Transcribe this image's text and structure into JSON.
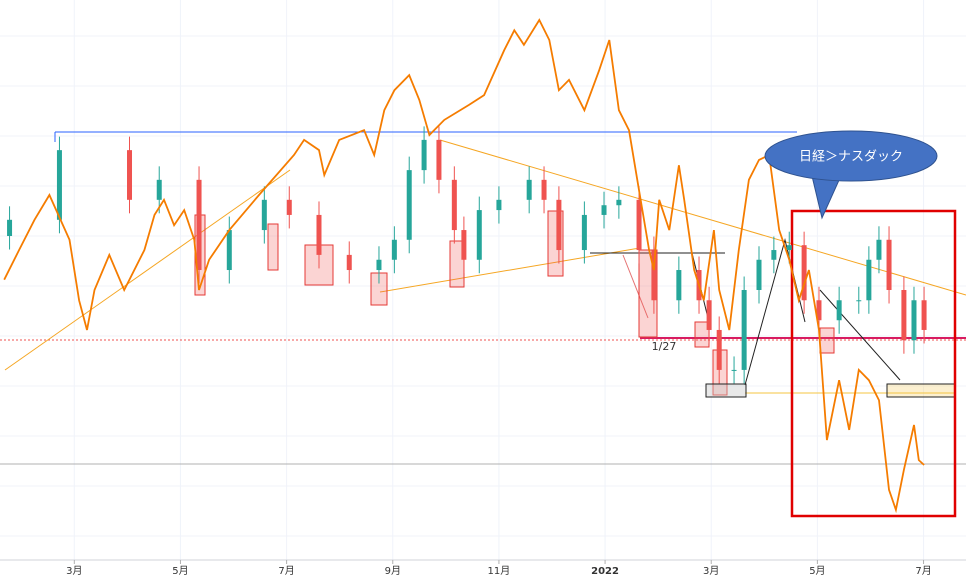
{
  "chart_data": {
    "type": "candlestick",
    "x": [
      1.78,
      2.72,
      4.04,
      4.6,
      5.35,
      5.92,
      6.58,
      7.05,
      7.61,
      8.18,
      8.74,
      9.03,
      9.31,
      9.59,
      9.87,
      10.16,
      10.34,
      10.63,
      11.0,
      11.57,
      11.85,
      12.13,
      12.61,
      12.98,
      13.26,
      13.64,
      13.92,
      14.39,
      14.77,
      14.96,
      15.15,
      15.43,
      15.62,
      15.9,
      16.18,
      16.47,
      16.75,
      17.03,
      17.41,
      17.78,
      17.97,
      18.16,
      18.35,
      18.63,
      18.82,
      19.01
    ],
    "open": [
      60.0,
      63.0,
      75.9,
      66.7,
      70.4,
      53.7,
      61.1,
      66.7,
      63.9,
      56.5,
      53.7,
      55.6,
      59.3,
      72.2,
      77.8,
      70.4,
      61.1,
      55.6,
      64.8,
      66.7,
      70.4,
      66.7,
      57.4,
      63.9,
      65.7,
      66.7,
      57.4,
      48.1,
      53.7,
      48.1,
      42.6,
      35.2,
      35.2,
      50.0,
      55.6,
      57.4,
      58.3,
      48.1,
      44.4,
      48.1,
      48.1,
      55.6,
      59.3,
      50.0,
      40.7,
      48.1
    ],
    "high": [
      65.5,
      78.4,
      78.4,
      72.9,
      72.9,
      63.6,
      69.2,
      69.2,
      66.4,
      59.0,
      58.1,
      61.8,
      74.7,
      80.3,
      80.3,
      72.9,
      63.6,
      67.3,
      69.2,
      72.9,
      72.9,
      69.2,
      66.4,
      68.2,
      69.2,
      69.2,
      59.9,
      56.2,
      56.2,
      50.6,
      45.1,
      37.7,
      52.5,
      58.1,
      59.9,
      60.8,
      60.8,
      50.6,
      50.6,
      50.6,
      58.1,
      61.8,
      61.8,
      52.5,
      50.6,
      50.6
    ],
    "low": [
      57.5,
      60.5,
      64.2,
      64.2,
      51.2,
      51.2,
      58.6,
      61.4,
      54.0,
      51.2,
      51.2,
      53.1,
      56.8,
      69.7,
      67.9,
      58.6,
      53.1,
      53.1,
      62.3,
      64.2,
      64.2,
      54.9,
      54.9,
      61.4,
      63.2,
      54.9,
      45.6,
      45.6,
      45.6,
      40.1,
      32.7,
      32.7,
      32.7,
      47.5,
      53.1,
      54.9,
      45.6,
      41.9,
      41.9,
      45.6,
      45.6,
      53.1,
      47.5,
      38.2,
      38.2,
      40.1
    ],
    "close": [
      63.0,
      75.9,
      66.7,
      70.4,
      53.7,
      61.1,
      66.7,
      63.9,
      56.5,
      53.7,
      55.6,
      59.3,
      72.2,
      77.8,
      70.4,
      61.1,
      55.6,
      64.8,
      66.7,
      70.4,
      66.7,
      57.4,
      63.9,
      65.7,
      66.7,
      57.4,
      48.1,
      53.7,
      48.1,
      42.6,
      35.2,
      35.2,
      50.0,
      55.6,
      57.4,
      58.3,
      48.1,
      44.4,
      48.1,
      48.1,
      55.6,
      59.3,
      50.0,
      40.7,
      48.1,
      42.6
    ],
    "up_color": "#26a69a",
    "down_color": "#ef5350",
    "series": [
      {
        "type": "line",
        "color": "#f57c00",
        "x": [
          1.68,
          1.96,
          2.25,
          2.53,
          2.91,
          3.09,
          3.24,
          3.38,
          3.66,
          3.94,
          4.32,
          4.51,
          4.69,
          4.88,
          5.07,
          5.26,
          5.35,
          5.54,
          5.92,
          6.48,
          7.14,
          7.33,
          7.61,
          7.71,
          7.99,
          8.46,
          8.65,
          8.84,
          9.03,
          9.31,
          9.5,
          9.69,
          9.97,
          10.44,
          10.72,
          11.1,
          11.29,
          11.47,
          11.76,
          11.95,
          12.13,
          12.32,
          12.61,
          12.89,
          13.08,
          13.26,
          13.45,
          13.64,
          13.83,
          13.92,
          14.02,
          14.21,
          14.39,
          14.49,
          14.68,
          14.86,
          15.05,
          15.15,
          15.34,
          15.52,
          15.71,
          15.9,
          16.09,
          16.28,
          16.47,
          16.65,
          16.84,
          17.03,
          17.18,
          17.41,
          17.6,
          17.78,
          17.97,
          18.16,
          18.35,
          18.48,
          18.63,
          18.82,
          18.91,
          19.01
        ],
        "values": [
          51.9,
          57.4,
          63.0,
          67.6,
          59.3,
          48.1,
          42.6,
          50.0,
          56.5,
          50.0,
          57.4,
          63.9,
          66.7,
          62.0,
          64.8,
          59.3,
          50.0,
          55.6,
          61.1,
          67.6,
          75.0,
          77.8,
          75.9,
          71.3,
          77.8,
          79.6,
          75.0,
          83.3,
          87.0,
          89.8,
          85.2,
          78.7,
          81.5,
          84.3,
          86.1,
          94.4,
          98.1,
          95.4,
          100,
          96.3,
          87.0,
          88.9,
          83.3,
          90.7,
          96.3,
          83.3,
          79.6,
          68.5,
          57.4,
          53.7,
          66.7,
          61.1,
          73.1,
          66.7,
          53.7,
          48.1,
          61.1,
          50.0,
          42.6,
          57.4,
          70.4,
          74.1,
          75.0,
          61.1,
          55.6,
          48.1,
          53.7,
          42.6,
          22.2,
          33.3,
          24.1,
          35.2,
          33.3,
          29.6,
          13.0,
          9.3,
          16.7,
          25.0,
          18.5,
          17.6
        ]
      }
    ],
    "xlim": [
      1.6,
      19.8
    ],
    "xticks": [
      {
        "value": 3,
        "label": "3月"
      },
      {
        "value": 5,
        "label": "5月"
      },
      {
        "value": 7,
        "label": "7月"
      },
      {
        "value": 9,
        "label": "9月"
      },
      {
        "value": 11,
        "label": "11月"
      },
      {
        "value": 13,
        "label": "2022"
      },
      {
        "value": 15,
        "label": "3月"
      },
      {
        "value": 17,
        "label": "5月"
      },
      {
        "value": 19,
        "label": "7月"
      }
    ],
    "ylim": [
      0,
      100
    ],
    "annotations": [
      "1/27"
    ],
    "callout": "日経＞ナスダック"
  }
}
